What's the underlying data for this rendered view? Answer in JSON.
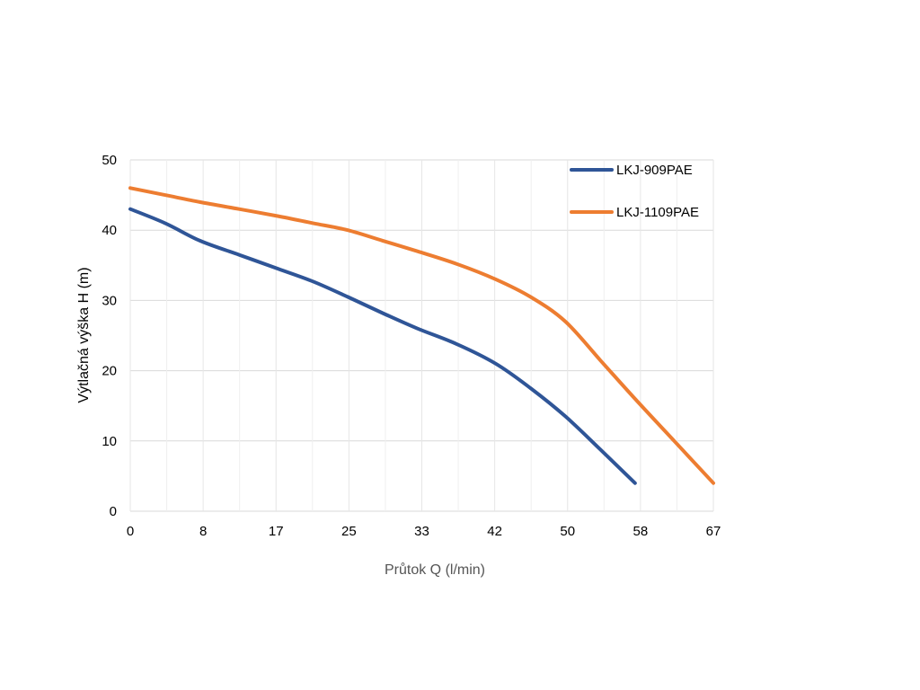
{
  "chart_data": {
    "type": "line",
    "xlabel": "Průtok Q (l/min)",
    "ylabel": "Výtlačná výška H (m)",
    "x_ticks": [
      "0",
      "8",
      "17",
      "25",
      "33",
      "42",
      "50",
      "58",
      "67"
    ],
    "y_ticks": [
      "0",
      "10",
      "20",
      "30",
      "40",
      "50"
    ],
    "xlim": [
      0,
      67
    ],
    "ylim": [
      0,
      50
    ],
    "grid": true,
    "legend_position": "top-right",
    "series": [
      {
        "name": "LKJ-909PAE",
        "color": "#2f5597",
        "points": [
          [
            0,
            43
          ],
          [
            4,
            41
          ],
          [
            8,
            38.5
          ],
          [
            12.5,
            36.5
          ],
          [
            17,
            34.5
          ],
          [
            21,
            32.7
          ],
          [
            25,
            30.5
          ],
          [
            29,
            28.2
          ],
          [
            33,
            26
          ],
          [
            37.5,
            23.8
          ],
          [
            42,
            21
          ],
          [
            46,
            17.5
          ],
          [
            50,
            13.5
          ],
          [
            54,
            8.8
          ],
          [
            58,
            4
          ]
        ]
      },
      {
        "name": "LKJ-1109PAE",
        "color": "#ed7d31",
        "points": [
          [
            0,
            46
          ],
          [
            4,
            45
          ],
          [
            8,
            44
          ],
          [
            12.5,
            43
          ],
          [
            17,
            42
          ],
          [
            21,
            41
          ],
          [
            25,
            40
          ],
          [
            29,
            38.5
          ],
          [
            33,
            37
          ],
          [
            37.5,
            35.2
          ],
          [
            42,
            33
          ],
          [
            46,
            30.5
          ],
          [
            50,
            27
          ],
          [
            54,
            21.5
          ],
          [
            58,
            16
          ],
          [
            62.5,
            10
          ],
          [
            67,
            4
          ]
        ]
      }
    ]
  }
}
